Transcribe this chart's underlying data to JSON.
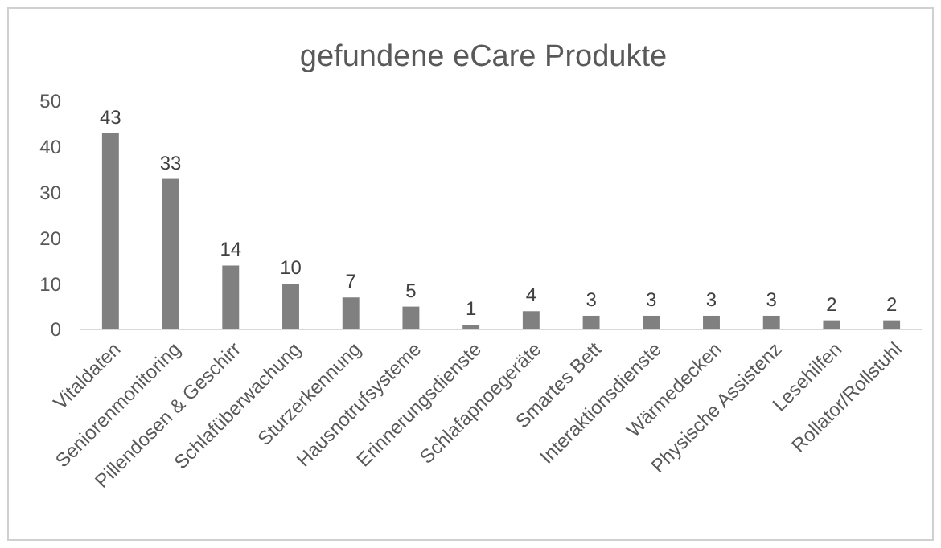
{
  "chart_data": {
    "type": "bar",
    "title": "gefundene eCare Produkte",
    "categories": [
      "Vitaldaten",
      "Seniorenmonitoring",
      "Pillendosen & Geschirr",
      "Schlafüberwachung",
      "Sturzerkennung",
      "Hausnotrufsysteme",
      "Erinnerungsdienste",
      "Schlafapnoegeräte",
      "Smartes Bett",
      "Interaktionsdienste",
      "Wärmedecken",
      "Physische Assistenz",
      "Lesehilfen",
      "Rollator/Rollstuhl"
    ],
    "values": [
      43,
      33,
      14,
      10,
      7,
      5,
      1,
      4,
      3,
      3,
      3,
      3,
      2,
      2
    ],
    "color": "#808080",
    "ylim": [
      0,
      50
    ],
    "yticks": [
      0,
      10,
      20,
      30,
      40,
      50
    ],
    "data_labels": true
  }
}
